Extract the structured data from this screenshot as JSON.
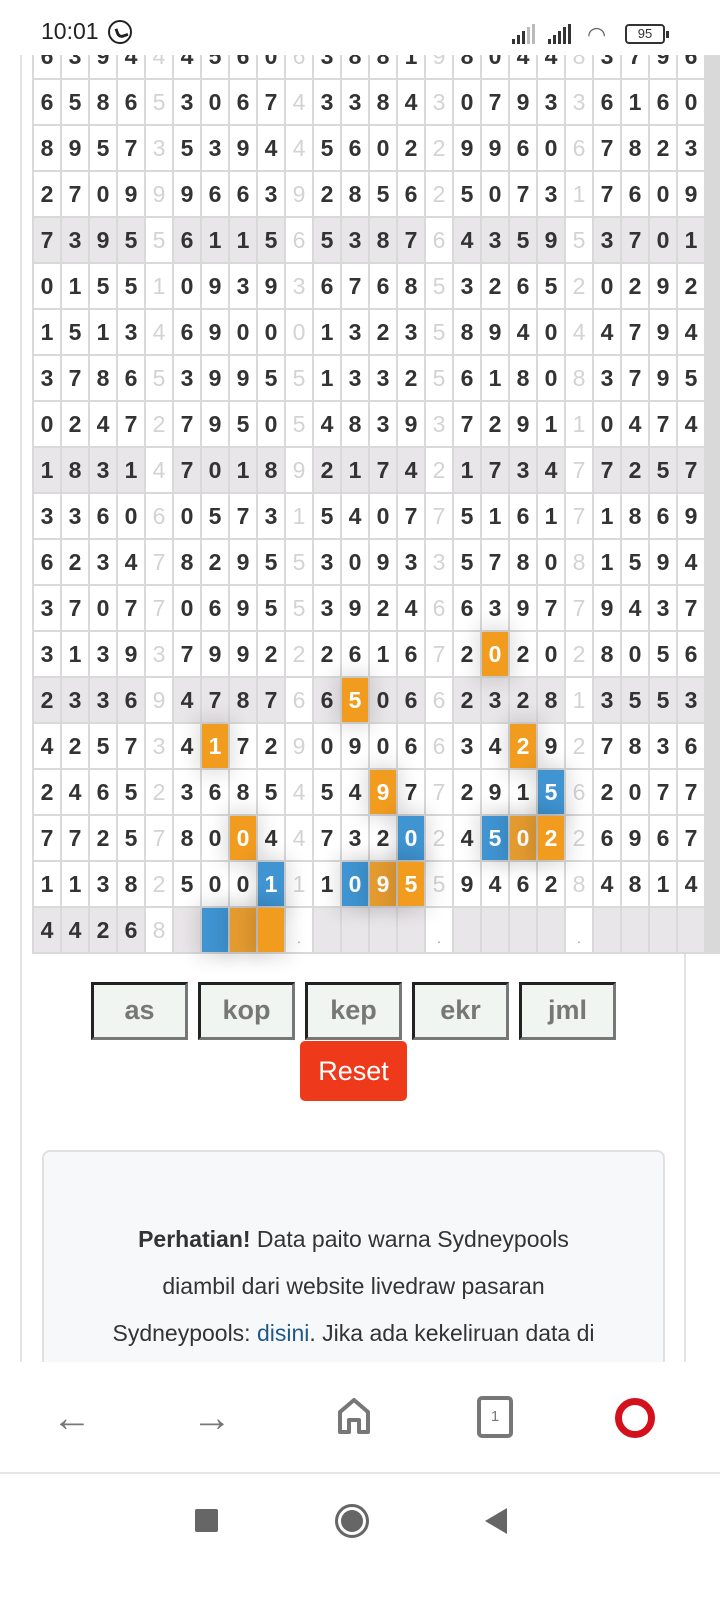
{
  "status_bar": {
    "time": "10:01",
    "battery": "95"
  },
  "paito": {
    "rows": [
      "639444560638819804483796",
      "658653067433843079336160",
      "895735394456022996067823",
      "270999663928562507317609",
      "739556115653876435953701",
      "015510939367685326520292",
      "151346900013235894044794",
      "378653995513325618083795",
      "024727950548393729110474",
      "183147018921742173477257",
      "336060573154077516171869",
      "623478295530933578081594",
      "370770695539246639779437",
      "313937992226167202028056",
      "233694787665066232813553",
      "425734172909066342927836",
      "246523685454977291562077",
      "772578004473202450226967",
      "113825001110955946284814",
      [
        "4",
        "4",
        "2",
        "6",
        "8",
        "",
        "",
        "",
        "",
        ".",
        "",
        "",
        "",
        "",
        ".",
        "",
        "",
        "",
        "",
        ".",
        "",
        "",
        "",
        ""
      ]
    ],
    "shaded_rows": [
      4,
      9,
      14,
      19
    ],
    "separator_columns": [
      4,
      9,
      14,
      19
    ],
    "colors": {
      "orange": "#f29c1f",
      "orange_dark": "#e39a2f",
      "blue": "#3f94d1"
    },
    "highlights": [
      {
        "row": 13,
        "col": 16,
        "color": "orange"
      },
      {
        "row": 14,
        "col": 11,
        "color": "orange"
      },
      {
        "row": 15,
        "col": 6,
        "color": "orange"
      },
      {
        "row": 15,
        "col": 17,
        "color": "orange"
      },
      {
        "row": 16,
        "col": 12,
        "color": "orange"
      },
      {
        "row": 16,
        "col": 18,
        "color": "blue"
      },
      {
        "row": 17,
        "col": 7,
        "color": "orange"
      },
      {
        "row": 17,
        "col": 13,
        "color": "blue"
      },
      {
        "row": 17,
        "col": 16,
        "color": "blue"
      },
      {
        "row": 17,
        "col": 17,
        "color": "orange_dark"
      },
      {
        "row": 17,
        "col": 18,
        "color": "orange"
      },
      {
        "row": 18,
        "col": 8,
        "color": "blue"
      },
      {
        "row": 18,
        "col": 11,
        "color": "blue"
      },
      {
        "row": 18,
        "col": 12,
        "color": "orange_dark"
      },
      {
        "row": 18,
        "col": 13,
        "color": "orange"
      },
      {
        "row": 19,
        "col": 6,
        "color": "blue"
      },
      {
        "row": 19,
        "col": 7,
        "color": "orange_dark"
      },
      {
        "row": 19,
        "col": 8,
        "color": "orange"
      }
    ]
  },
  "filter_buttons": [
    "as",
    "kop",
    "kep",
    "ekr",
    "jml"
  ],
  "reset_label": "Reset",
  "notice": {
    "bold": "Perhatian!",
    "line1": " Data paito warna Sydneypools",
    "line2": "diambil dari website livedraw pasaran",
    "line3a": "Sydneypools: ",
    "link": "disini",
    "line3b": ". Jika ada kekeliruan data di"
  },
  "browser": {
    "tab_count": "1"
  }
}
